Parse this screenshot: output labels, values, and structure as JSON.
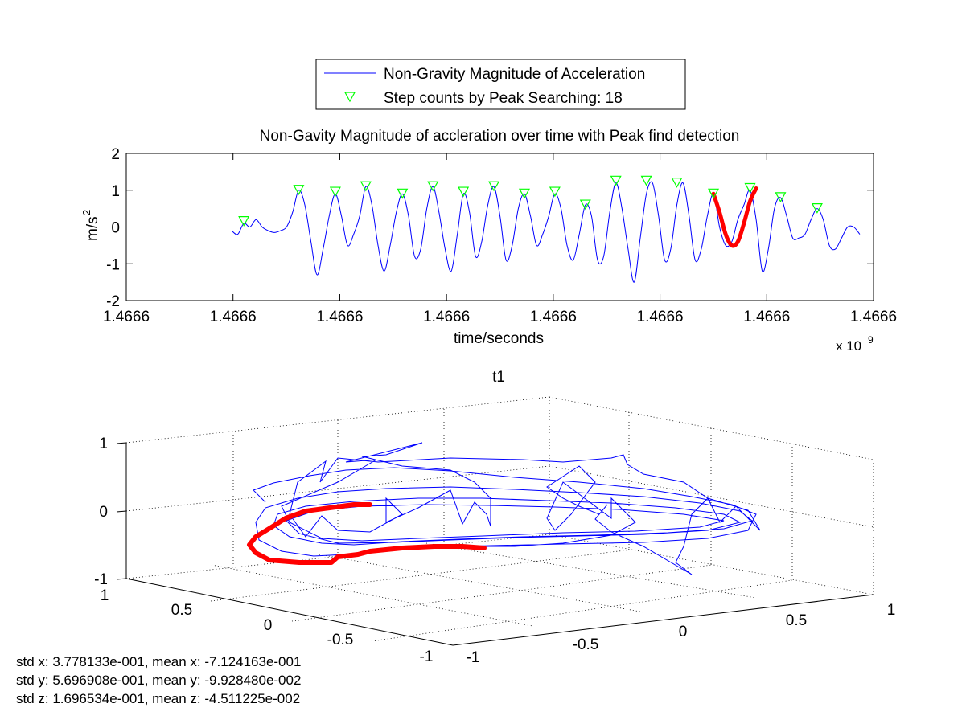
{
  "chart_data": [
    {
      "type": "line",
      "title": "Non-Gavity Magnitude of accleration over time with Peak find detection",
      "xlabel": "time/seconds",
      "ylabel_base": "m/s",
      "ylabel_exp": "2",
      "x_multiplier_base": "x 10",
      "x_multiplier_exp": "9",
      "ylim": [
        -2,
        2
      ],
      "yticks": [
        "2",
        "1",
        "0",
        "-1",
        "-2"
      ],
      "xticks": [
        "1.4666",
        "1.4666",
        "1.4666",
        "1.4666",
        "1.4666",
        "1.4666",
        "1.4666",
        "1.4666"
      ],
      "legend": {
        "placement": "top-center (outside)",
        "entries": [
          "Non-Gravity Magnitude of Acceleration",
          "Step counts by Peak Searching: 18"
        ]
      },
      "colors": {
        "signal": "#0000ff",
        "peaks": "#00ff00",
        "highlight": "#ff0000"
      },
      "series": [
        {
          "name": "Non-Gravity Magnitude of Acceleration",
          "note_x_domain": [
            0,
            100
          ],
          "points": [
            [
              0,
              -0.1
            ],
            [
              1,
              -0.2
            ],
            [
              2,
              0.1
            ],
            [
              3,
              0.0
            ],
            [
              4,
              0.2
            ],
            [
              5,
              0.0
            ],
            [
              6,
              -0.1
            ],
            [
              7,
              -0.15
            ],
            [
              8,
              -0.1
            ],
            [
              9,
              0.0
            ],
            [
              10,
              0.4
            ],
            [
              11,
              1.0
            ],
            [
              12,
              0.6
            ],
            [
              13,
              -0.4
            ],
            [
              14,
              -1.3
            ],
            [
              15,
              -0.6
            ],
            [
              16,
              0.3
            ],
            [
              17,
              0.9
            ],
            [
              18,
              0.3
            ],
            [
              19,
              -0.5
            ],
            [
              20,
              -0.2
            ],
            [
              21,
              0.3
            ],
            [
              22,
              1.1
            ],
            [
              23,
              0.6
            ],
            [
              24,
              -0.5
            ],
            [
              25,
              -1.2
            ],
            [
              26,
              -0.5
            ],
            [
              27,
              0.4
            ],
            [
              28,
              0.9
            ],
            [
              29,
              0.3
            ],
            [
              30,
              -0.8
            ],
            [
              31,
              -0.6
            ],
            [
              32,
              0.5
            ],
            [
              33,
              1.1
            ],
            [
              34,
              0.4
            ],
            [
              35,
              -0.6
            ],
            [
              36,
              -1.2
            ],
            [
              37,
              -0.2
            ],
            [
              38,
              0.9
            ],
            [
              39,
              0.4
            ],
            [
              40,
              -0.8
            ],
            [
              41,
              -0.4
            ],
            [
              42,
              0.6
            ],
            [
              43,
              1.1
            ],
            [
              44,
              0.3
            ],
            [
              45,
              -0.9
            ],
            [
              46,
              -0.5
            ],
            [
              47,
              0.5
            ],
            [
              48,
              0.9
            ],
            [
              49,
              0.3
            ],
            [
              50,
              -0.5
            ],
            [
              51,
              -0.2
            ],
            [
              52,
              0.3
            ],
            [
              53,
              0.9
            ],
            [
              54,
              0.5
            ],
            [
              55,
              -0.5
            ],
            [
              56,
              -0.9
            ],
            [
              57,
              -0.2
            ],
            [
              58,
              0.6
            ],
            [
              59,
              0.3
            ],
            [
              60,
              -0.9
            ],
            [
              61,
              -0.8
            ],
            [
              62,
              0.4
            ],
            [
              63,
              1.2
            ],
            [
              64,
              0.5
            ],
            [
              65,
              -0.6
            ],
            [
              66,
              -1.5
            ],
            [
              67,
              -0.3
            ],
            [
              68,
              0.9
            ],
            [
              69,
              1.2
            ],
            [
              70,
              0.3
            ],
            [
              71,
              -0.9
            ],
            [
              72,
              -0.6
            ],
            [
              73,
              0.6
            ],
            [
              74,
              1.2
            ],
            [
              75,
              0.3
            ],
            [
              76,
              -0.9
            ],
            [
              77,
              -0.6
            ],
            [
              78,
              0.3
            ],
            [
              79,
              0.9
            ],
            [
              80,
              0.0
            ],
            [
              81,
              -0.5
            ],
            [
              82,
              -0.4
            ],
            [
              83,
              0.2
            ],
            [
              84,
              0.6
            ],
            [
              85,
              1.0
            ],
            [
              86,
              0.2
            ],
            [
              87,
              -1.2
            ],
            [
              88,
              -0.6
            ],
            [
              89,
              0.5
            ],
            [
              90,
              0.8
            ],
            [
              91,
              0.3
            ],
            [
              92,
              -0.3
            ],
            [
              93,
              -0.3
            ],
            [
              94,
              -0.2
            ],
            [
              95,
              0.2
            ],
            [
              96,
              0.5
            ],
            [
              97,
              0.2
            ],
            [
              98,
              -0.5
            ],
            [
              99,
              -0.6
            ],
            [
              100,
              -0.3
            ],
            [
              101,
              0.0
            ],
            [
              102,
              0.0
            ],
            [
              103,
              -0.2
            ]
          ]
        },
        {
          "name": "Step counts by Peak Searching: 18",
          "peak_x": [
            2,
            11,
            17,
            22,
            28,
            33,
            38,
            43,
            48,
            53,
            58,
            63,
            68,
            73,
            79,
            85,
            90,
            96
          ],
          "peak_y": [
            0.15,
            1.0,
            0.95,
            1.1,
            0.9,
            1.1,
            0.95,
            1.1,
            0.9,
            0.95,
            0.6,
            1.25,
            1.25,
            1.2,
            0.9,
            1.05,
            0.8,
            0.5
          ]
        },
        {
          "name": "highlight",
          "points": [
            [
              79,
              0.9
            ],
            [
              80,
              0.4
            ],
            [
              81,
              -0.2
            ],
            [
              82,
              -0.5
            ],
            [
              83,
              -0.4
            ],
            [
              84,
              0.1
            ],
            [
              85,
              0.7
            ],
            [
              86,
              1.05
            ]
          ]
        }
      ]
    },
    {
      "type": "line3d",
      "title": "t1",
      "zlim": [
        -1,
        1
      ],
      "zticks": [
        "1",
        "0",
        "-1"
      ],
      "xticks": [
        "1",
        "0.5",
        "0",
        "-0.5",
        "-1"
      ],
      "yticks": [
        "-1",
        "-0.5",
        "0",
        "0.5",
        "1"
      ],
      "colors": {
        "trajectory": "#0000ff",
        "highlight": "#ff0000"
      },
      "stats": [
        "std x: 3.778133e-001, mean x: -7.124163e-001",
        "std y: 5.696908e-001, mean y: -9.928480e-002",
        "std z: 1.696534e-001, mean z: -4.511225e-002"
      ]
    }
  ]
}
